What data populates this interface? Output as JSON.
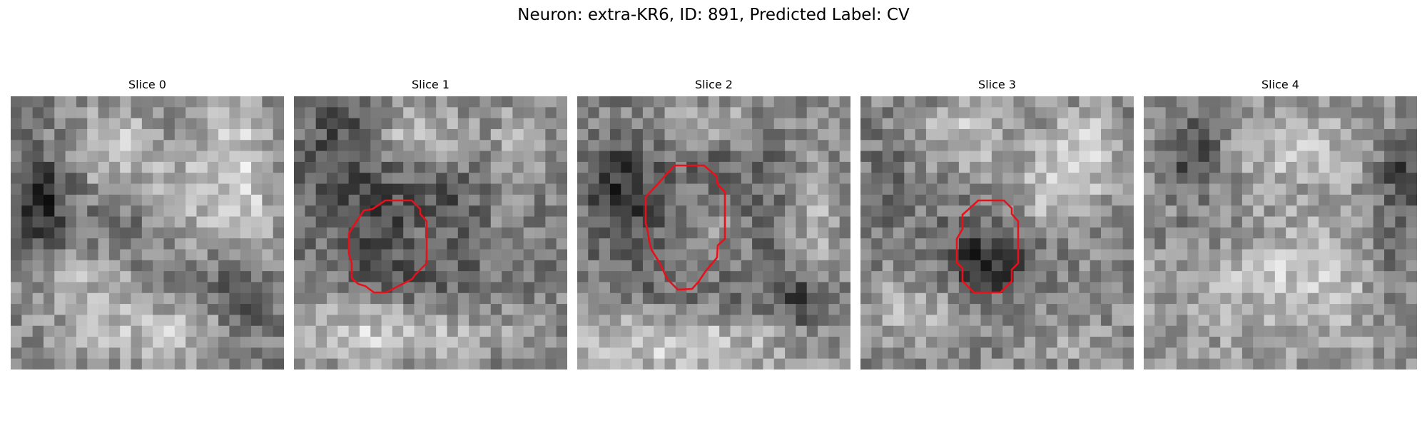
{
  "figure": {
    "title": "Neuron: extra-KR6, ID: 891, Predicted Label: CV"
  },
  "colormap": "gray",
  "contour_color": "#e8101a",
  "panels": [
    {
      "title": "Slice 0",
      "has_contour": false
    },
    {
      "title": "Slice 1",
      "has_contour": true
    },
    {
      "title": "Slice 2",
      "has_contour": true
    },
    {
      "title": "Slice 3",
      "has_contour": true
    },
    {
      "title": "Slice 4",
      "has_contour": false
    }
  ]
}
